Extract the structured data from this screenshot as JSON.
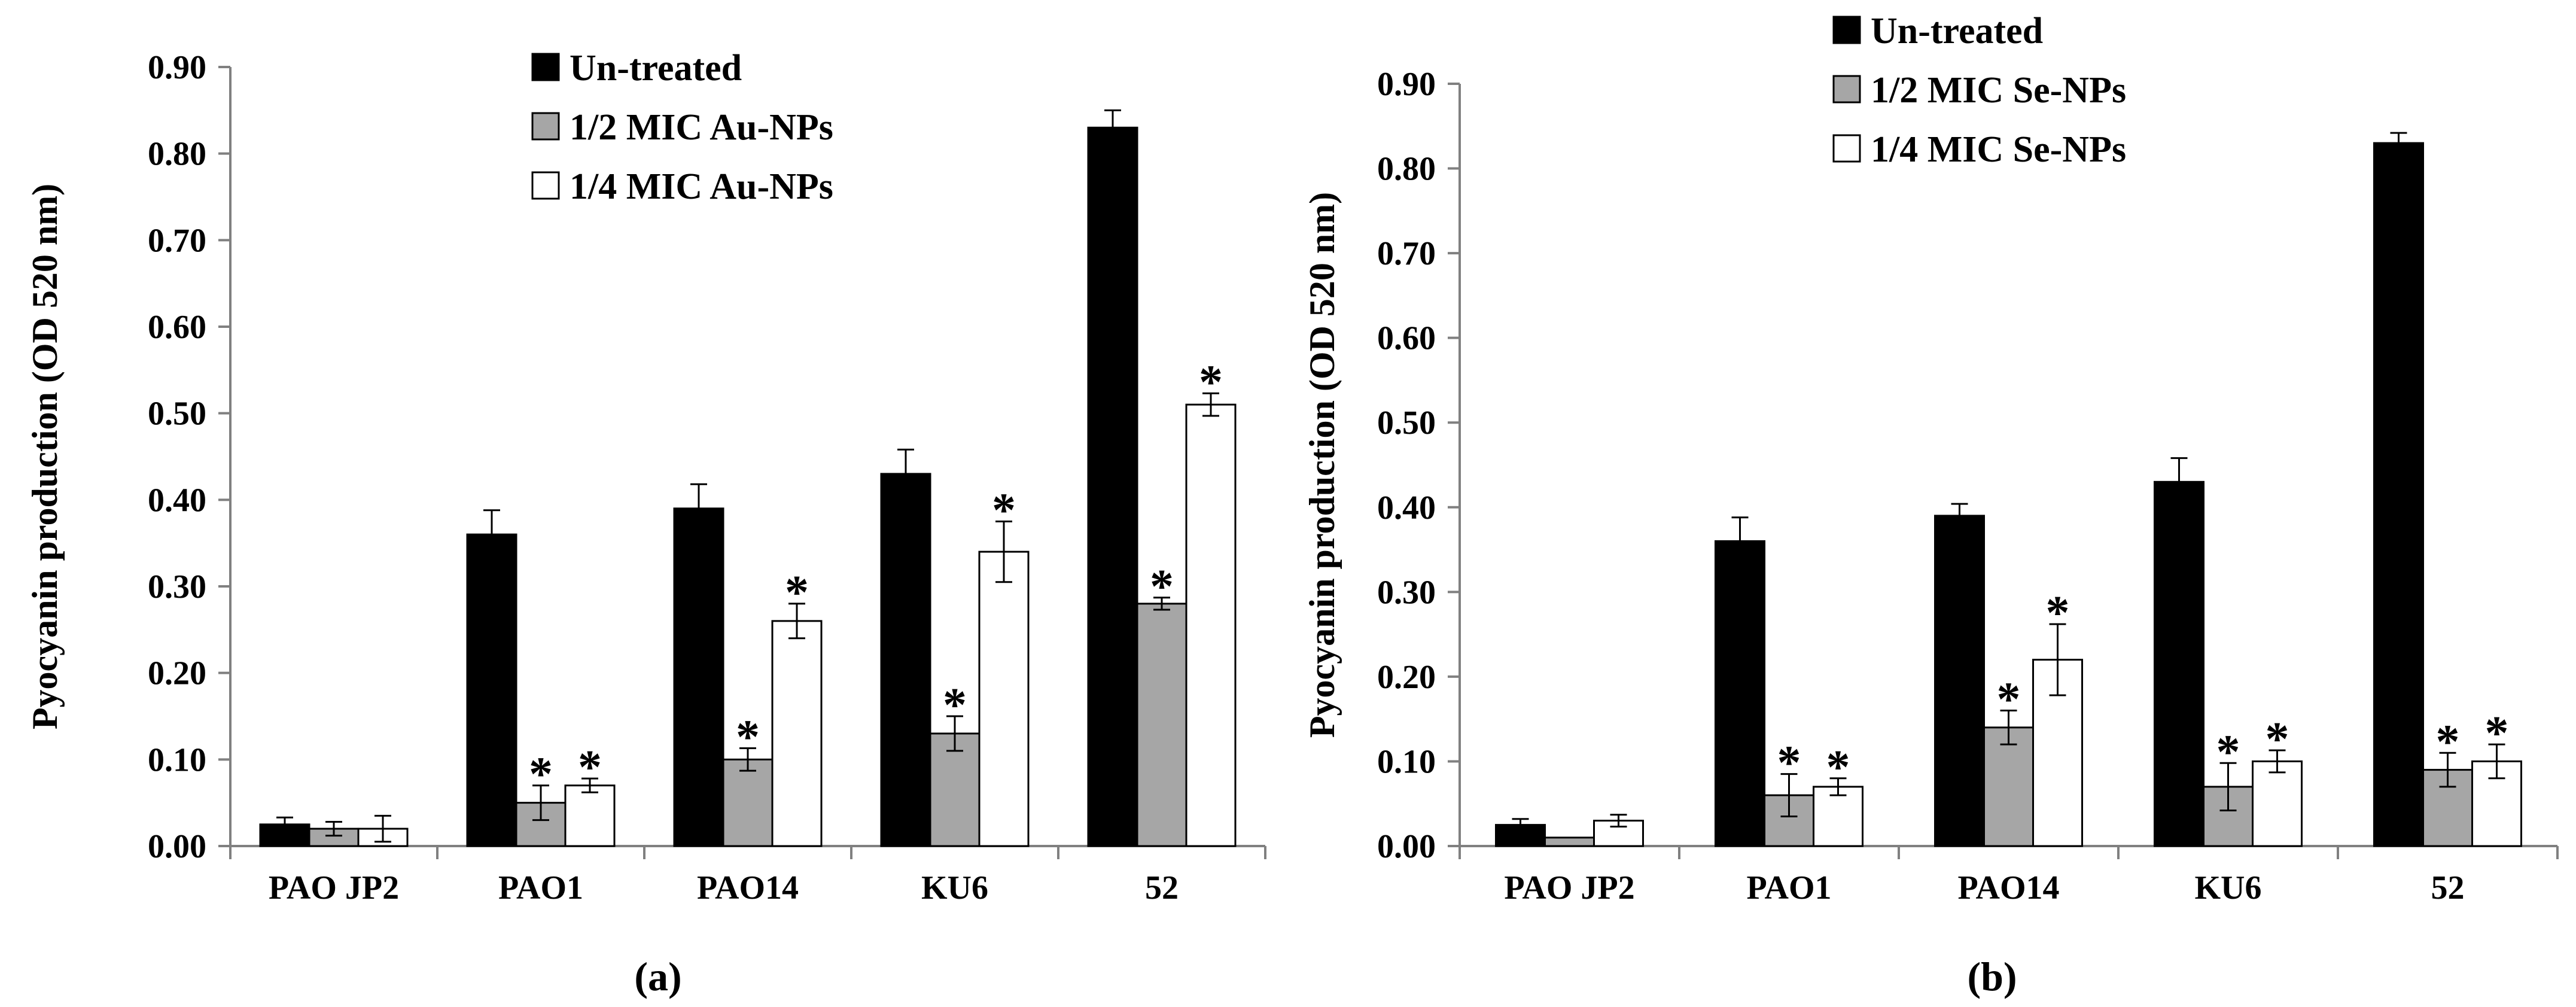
{
  "chart_data": [
    {
      "type": "bar",
      "panel_label": "(a)",
      "ylabel": "Pyocyanin production (OD 520 nm)",
      "xlabel": "",
      "ylim": [
        0,
        0.9
      ],
      "yticks": [
        "0.00",
        "0.10",
        "0.20",
        "0.30",
        "0.40",
        "0.50",
        "0.60",
        "0.70",
        "0.80",
        "0.90"
      ],
      "categories": [
        "PAO JP2",
        "PAO1",
        "PAO14",
        "KU6",
        "52"
      ],
      "legend_position": "top-center",
      "series": [
        {
          "name": "Un-treated",
          "color": "#000000",
          "values": [
            0.025,
            0.36,
            0.39,
            0.43,
            0.83
          ],
          "errors": [
            0.008,
            0.028,
            0.028,
            0.028,
            0.02
          ],
          "significant": [
            false,
            false,
            false,
            false,
            false
          ]
        },
        {
          "name": "1/2 MIC Au-NPs",
          "color": "#a6a6a6",
          "values": [
            0.02,
            0.05,
            0.1,
            0.13,
            0.28
          ],
          "errors": [
            0.008,
            0.02,
            0.013,
            0.02,
            0.007
          ],
          "significant": [
            false,
            true,
            true,
            true,
            true
          ]
        },
        {
          "name": "1/4 MIC Au-NPs",
          "color": "#ffffff",
          "values": [
            0.02,
            0.07,
            0.26,
            0.34,
            0.51
          ],
          "errors": [
            0.015,
            0.008,
            0.02,
            0.035,
            0.013
          ],
          "significant": [
            false,
            true,
            true,
            true,
            true
          ]
        }
      ],
      "annotation_symbol": "*"
    },
    {
      "type": "bar",
      "panel_label": "(b)",
      "ylabel": "Pyocyanin production (OD 520 nm)",
      "xlabel": "",
      "ylim": [
        0,
        0.9
      ],
      "yticks": [
        "0.00",
        "0.10",
        "0.20",
        "0.30",
        "0.40",
        "0.50",
        "0.60",
        "0.70",
        "0.80",
        "0.90"
      ],
      "categories": [
        "PAO JP2",
        "PAO1",
        "PAO14",
        "KU6",
        "52"
      ],
      "legend_position": "top-center",
      "series": [
        {
          "name": "Un-treated",
          "color": "#000000",
          "values": [
            0.025,
            0.36,
            0.39,
            0.43,
            0.83
          ],
          "errors": [
            0.007,
            0.028,
            0.014,
            0.028,
            0.012
          ],
          "significant": [
            false,
            false,
            false,
            false,
            false
          ]
        },
        {
          "name": "1/2 MIC Se-NPs",
          "color": "#a6a6a6",
          "values": [
            0.01,
            0.06,
            0.14,
            0.07,
            0.09
          ],
          "errors": [
            0.0,
            0.025,
            0.02,
            0.028,
            0.02
          ],
          "significant": [
            false,
            true,
            true,
            true,
            true
          ]
        },
        {
          "name": "1/4 MIC Se-NPs",
          "color": "#ffffff",
          "values": [
            0.03,
            0.07,
            0.22,
            0.1,
            0.1
          ],
          "errors": [
            0.007,
            0.01,
            0.042,
            0.013,
            0.02
          ],
          "significant": [
            false,
            true,
            true,
            true,
            true
          ]
        }
      ],
      "annotation_symbol": "*"
    }
  ]
}
